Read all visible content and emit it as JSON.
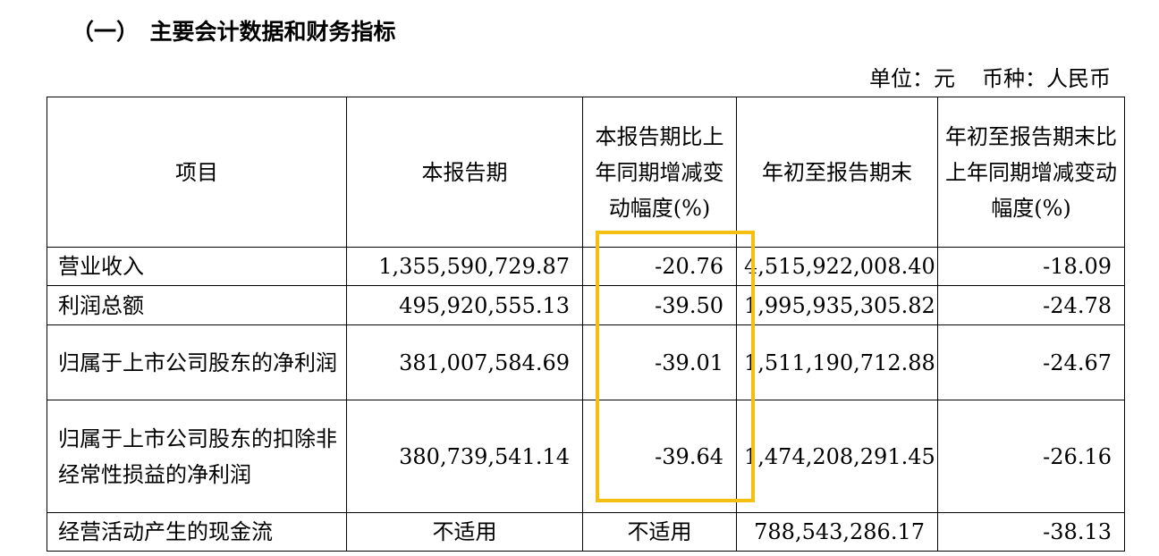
{
  "section_title": "（一）　主要会计数据和财务指标",
  "unit": {
    "unit_label": "单位：元",
    "currency_label": "币种：人民币"
  },
  "table": {
    "headers": [
      "项目",
      "本报告期",
      "本报告期比上年同期增减变动幅度(%)",
      "年初至报告期末",
      "年初至报告期末比上年同期增减变动幅度(%)"
    ],
    "rows": [
      [
        "营业收入",
        "1,355,590,729.87",
        "-20.76",
        "4,515,922,008.40",
        "-18.09"
      ],
      [
        "利润总额",
        "495,920,555.13",
        "-39.50",
        "1,995,935,305.82",
        "-24.78"
      ],
      [
        "归属于上市公司股东的净利润",
        "381,007,584.69",
        "-39.01",
        "1,511,190,712.88",
        "-24.67"
      ],
      [
        "归属于上市公司股东的扣除非经常性损益的净利润",
        "380,739,541.14",
        "-39.64",
        "1,474,208,291.45",
        "-26.16"
      ],
      [
        "经营活动产生的现金流",
        "不适用",
        "不适用",
        "788,543,286.17",
        "-38.13"
      ]
    ]
  },
  "highlight": {
    "color": "#f5bf11"
  }
}
